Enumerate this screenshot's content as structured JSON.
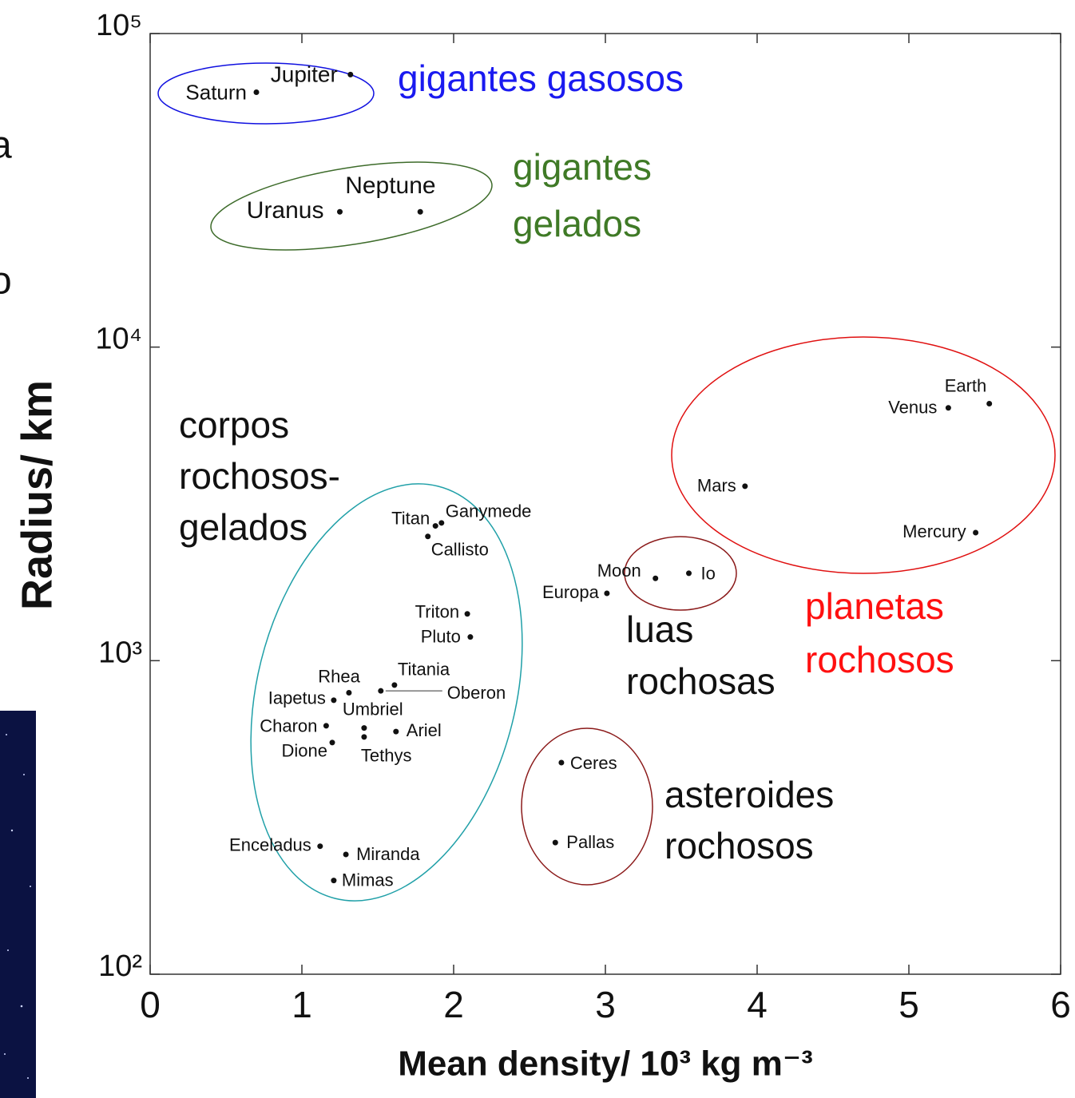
{
  "chart_data": {
    "type": "scatter",
    "xlabel": "Mean density/ 10³ kg m⁻³",
    "ylabel": "Radius/ km",
    "xlim": [
      0,
      6
    ],
    "xticks": [
      0,
      1,
      2,
      3,
      4,
      5,
      6
    ],
    "ylim": [
      100,
      100000
    ],
    "yscale": "log",
    "yticks": [
      {
        "value": 100,
        "label": "10²"
      },
      {
        "value": 1000,
        "label": "10³"
      },
      {
        "value": 10000,
        "label": "10⁴"
      },
      {
        "value": 100000,
        "label": "10⁵"
      }
    ],
    "color": "#111111",
    "labels": [
      "Jupiter",
      "Saturn",
      "Uranus",
      "Neptune",
      "Earth",
      "Venus",
      "Mars",
      "Mercury",
      "Moon",
      "Io",
      "Europa",
      "Ganymede",
      "Titan",
      "Callisto",
      "Triton",
      "Pluto",
      "Titania",
      "Oberon",
      "Rhea",
      "Iapetus",
      "Umbriel",
      "Ariel",
      "Charon",
      "Tethys",
      "Dione",
      "Ceres",
      "Pallas",
      "Enceladus",
      "Miranda",
      "Mimas"
    ],
    "x": [
      1.32,
      0.7,
      1.25,
      1.78,
      5.53,
      5.26,
      3.92,
      5.44,
      3.33,
      3.55,
      3.01,
      1.92,
      1.88,
      1.83,
      2.09,
      2.11,
      1.61,
      1.52,
      1.31,
      1.21,
      1.41,
      1.62,
      1.16,
      1.41,
      1.2,
      2.71,
      2.67,
      1.12,
      1.29,
      1.21
    ],
    "values": [
      74000,
      65000,
      27000,
      27000,
      6600,
      6400,
      3600,
      2560,
      1830,
      1900,
      1640,
      2750,
      2690,
      2490,
      1410,
      1190,
      836,
      801,
      790,
      748,
      610,
      594,
      620,
      571,
      548,
      473,
      263,
      256,
      241,
      199
    ],
    "annotations": [
      {
        "text": [
          "gigantes gasosos"
        ],
        "color": "#1a1af0"
      },
      {
        "text": [
          "gigantes",
          "gelados"
        ],
        "color": "#3f7a26"
      },
      {
        "text": [
          "corpos",
          "rochosos-",
          "gelados"
        ],
        "color": "#111111"
      },
      {
        "text": [
          "luas",
          "rochosas"
        ],
        "color": "#111111"
      },
      {
        "text": [
          "planetas",
          "rochosos"
        ],
        "color": "#ff1010"
      },
      {
        "text": [
          "asteroides",
          "rochosos"
        ],
        "color": "#111111"
      }
    ]
  },
  "left_fragments": [
    "a",
    "o"
  ]
}
